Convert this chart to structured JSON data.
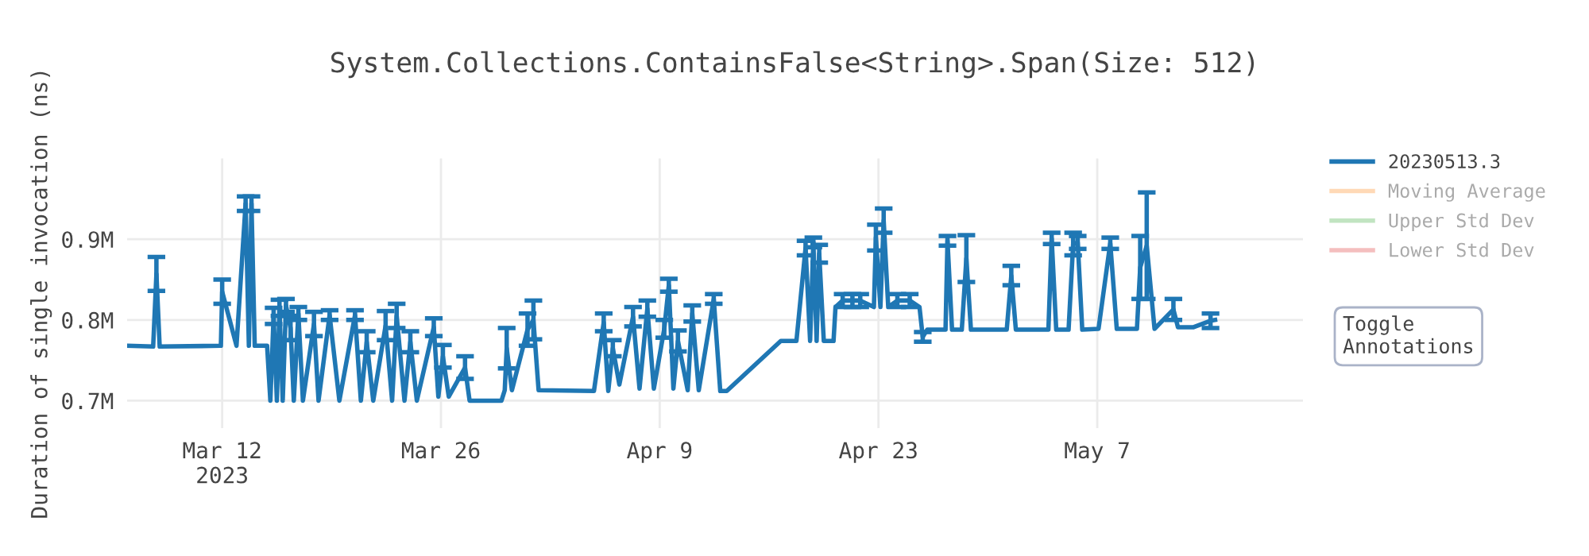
{
  "chart_data": {
    "type": "line",
    "title": "System.Collections.ContainsFalse<String>.Span(Size: 512)",
    "ylabel": "Duration of single invocation (ns)",
    "x": [
      "2023-03-05T22:00",
      "2023-03-07T14:00",
      "2023-03-07T19:00",
      "2023-03-08T00:00",
      "2023-03-11T22:00",
      "2023-03-12T00:00",
      "2023-03-12T22:00",
      "2023-03-13T12:00",
      "2023-03-13T17:00",
      "2023-03-13T21:00",
      "2023-03-14T02:00",
      "2023-03-14T21:00",
      "2023-03-15T02:00",
      "2023-03-15T07:00",
      "2023-03-15T12:00",
      "2023-03-15T16:00",
      "2023-03-15T21:00",
      "2023-03-16T02:00",
      "2023-03-16T09:00",
      "2023-03-16T14:00",
      "2023-03-16T21:00",
      "2023-03-17T04:00",
      "2023-03-17T21:00",
      "2023-03-18T04:00",
      "2023-03-18T21:00",
      "2023-03-19T12:00",
      "2023-03-20T12:00",
      "2023-03-20T21:00",
      "2023-03-21T06:00",
      "2023-03-21T16:00",
      "2023-03-22T11:00",
      "2023-03-22T21:00",
      "2023-03-23T04:00",
      "2023-03-23T16:00",
      "2023-03-24T01:00",
      "2023-03-24T11:00",
      "2023-03-25T13:00",
      "2023-03-25T20:00",
      "2023-03-26T03:00",
      "2023-03-26T12:00",
      "2023-03-27T13:00",
      "2023-03-27T20:00",
      "2023-03-29T21:00",
      "2023-03-30T02:00",
      "2023-03-30T05:00",
      "2023-03-30T13:00",
      "2023-03-31T13:00",
      "2023-03-31T22:00",
      "2023-04-01T06:00",
      "2023-04-04T19:00",
      "2023-04-05T10:00",
      "2023-04-05T17:00",
      "2023-04-06T00:00",
      "2023-04-06T10:00",
      "2023-04-07T07:00",
      "2023-04-07T17:00",
      "2023-04-08T05:00",
      "2023-04-08T15:00",
      "2023-04-09T07:00",
      "2023-04-09T14:00",
      "2023-04-09T21:00",
      "2023-04-10T04:00",
      "2023-04-10T19:00",
      "2023-04-11T02:00",
      "2023-04-11T12:00",
      "2023-04-12T11:00",
      "2023-04-12T21:00",
      "2023-04-13T07:00",
      "2023-04-16T18:00",
      "2023-04-17T18:00",
      "2023-04-18T08:00",
      "2023-04-18T15:00",
      "2023-04-18T20:00",
      "2023-04-19T01:00",
      "2023-04-19T05:00",
      "2023-04-19T12:00",
      "2023-04-20T03:00",
      "2023-04-20T06:00",
      "2023-04-20T17:00",
      "2023-04-21T08:00",
      "2023-04-21T20:00",
      "2023-04-22T17:00",
      "2023-04-22T20:00",
      "2023-04-23T03:00",
      "2023-04-23T08:00",
      "2023-04-23T15:00",
      "2023-04-24T05:00",
      "2023-04-25T00:00",
      "2023-04-25T15:00",
      "2023-04-25T20:00",
      "2023-04-26T03:00",
      "2023-04-27T07:00",
      "2023-04-27T10:00",
      "2023-04-27T17:00",
      "2023-04-28T08:00",
      "2023-04-28T15:00",
      "2023-04-28T22:00",
      "2023-05-01T05:00",
      "2023-05-01T12:00",
      "2023-05-01T19:00",
      "2023-05-03T21:00",
      "2023-05-04T02:00",
      "2023-05-04T09:00",
      "2023-05-05T04:00",
      "2023-05-05T11:00",
      "2023-05-05T18:00",
      "2023-05-06T01:00",
      "2023-05-07T02:00",
      "2023-05-07T20:00",
      "2023-05-08T06:00",
      "2023-05-09T13:00",
      "2023-05-09T18:00",
      "2023-05-10T04:00",
      "2023-05-10T16:00",
      "2023-05-11T21:00",
      "2023-05-12T04:00",
      "2023-05-13T04:00",
      "2023-05-14T06:00",
      "2023-05-14T13:00"
    ],
    "series": [
      {
        "name": "20230513.3",
        "color": "#1f77b4",
        "values": [
          768000,
          767000,
          857000,
          767000,
          768000,
          835000,
          768000,
          944000,
          768000,
          944000,
          768000,
          768000,
          700000,
          805000,
          700000,
          815000,
          700000,
          818000,
          790000,
          700000,
          808000,
          700000,
          795000,
          700000,
          806000,
          700000,
          806000,
          700000,
          773000,
          700000,
          793000,
          700000,
          805000,
          700000,
          773000,
          700000,
          791000,
          705000,
          755000,
          705000,
          741000,
          700000,
          700000,
          713000,
          765000,
          713000,
          788000,
          800000,
          713000,
          712000,
          797000,
          712000,
          765000,
          720000,
          804000,
          715000,
          814000,
          715000,
          789000,
          843000,
          715000,
          774000,
          713000,
          808000,
          713000,
          826000,
          712000,
          712000,
          774000,
          774000,
          889000,
          774000,
          896000,
          774000,
          882000,
          774000,
          774000,
          816000,
          824000,
          824000,
          824000,
          816000,
          902000,
          816000,
          923000,
          816000,
          824000,
          824000,
          816000,
          779000,
          788000,
          788000,
          898000,
          788000,
          788000,
          876000,
          788000,
          788000,
          855000,
          788000,
          788000,
          901000,
          788000,
          788000,
          894000,
          896000,
          788000,
          789000,
          895000,
          789000,
          789000,
          865000,
          892000,
          789000,
          813000,
          791000,
          791000,
          799000,
          800000
        ],
        "errors": [
          null,
          null,
          21000,
          null,
          null,
          15000,
          null,
          9000,
          null,
          9000,
          null,
          null,
          null,
          10000,
          null,
          10000,
          null,
          8000,
          15000,
          null,
          8000,
          null,
          15000,
          null,
          6000,
          null,
          6000,
          null,
          13000,
          null,
          18000,
          null,
          15000,
          null,
          13000,
          null,
          11000,
          null,
          14000,
          null,
          14000,
          null,
          null,
          null,
          25000,
          null,
          20000,
          24000,
          null,
          null,
          11000,
          null,
          10000,
          null,
          12000,
          null,
          10000,
          null,
          11000,
          8000,
          null,
          13000,
          null,
          10000,
          null,
          6000,
          null,
          null,
          null,
          null,
          9000,
          null,
          6000,
          null,
          11000,
          null,
          null,
          null,
          8000,
          8000,
          8000,
          null,
          16000,
          null,
          15000,
          null,
          8000,
          8000,
          null,
          6000,
          null,
          null,
          6000,
          null,
          null,
          29000,
          null,
          null,
          12000,
          null,
          null,
          7000,
          null,
          null,
          14000,
          8000,
          null,
          null,
          7000,
          null,
          null,
          39000,
          66000,
          null,
          13000,
          null,
          null,
          9000,
          null
        ]
      },
      {
        "name": "Moving Average",
        "color": "#ffbf86",
        "values": [
          null,
          null,
          null,
          null,
          null,
          null,
          null,
          null,
          null,
          null,
          null,
          null,
          null,
          null,
          null,
          null,
          null,
          null,
          null,
          null,
          null,
          null,
          null,
          null,
          null,
          null,
          null,
          null,
          null,
          null,
          null,
          null,
          null,
          null,
          null,
          null,
          null,
          null,
          null,
          null,
          null,
          null,
          null,
          null,
          null,
          null,
          null,
          null,
          null,
          null,
          null,
          null,
          null,
          null,
          null,
          null,
          null,
          null,
          null,
          null,
          null,
          null,
          null,
          null,
          null,
          null,
          null,
          null,
          null,
          null,
          null,
          null,
          null,
          null,
          null,
          null,
          null,
          null,
          null,
          null,
          null,
          null,
          null,
          null,
          null,
          null,
          null,
          null,
          null,
          null,
          null,
          null,
          null,
          null,
          null,
          null,
          null,
          null,
          null,
          null,
          null,
          null,
          null,
          null,
          null,
          null,
          null,
          null,
          null,
          null,
          null,
          null,
          null,
          null,
          null,
          null,
          null,
          null,
          null
        ]
      },
      {
        "name": "Upper Std Dev",
        "color": "#98d298",
        "values": [
          null,
          null,
          null,
          null,
          null,
          null,
          null,
          null,
          null,
          null,
          null,
          null,
          null,
          null,
          null,
          null,
          null,
          null,
          null,
          null,
          null,
          null,
          null,
          null,
          null,
          null,
          null,
          null,
          null,
          null,
          null,
          null,
          null,
          null,
          null,
          null,
          null,
          null,
          null,
          null,
          null,
          null,
          null,
          null,
          null,
          null,
          null,
          null,
          null,
          null,
          null,
          null,
          null,
          null,
          null,
          null,
          null,
          null,
          null,
          null,
          null,
          null,
          null,
          null,
          null,
          null,
          null,
          null,
          null,
          null,
          null,
          null,
          null,
          null,
          null,
          null,
          null,
          null,
          null,
          null,
          null,
          null,
          null,
          null,
          null,
          null,
          null,
          null,
          null,
          null,
          null,
          null,
          null,
          null,
          null,
          null,
          null,
          null,
          null,
          null,
          null,
          null,
          null,
          null,
          null,
          null,
          null,
          null,
          null,
          null,
          null,
          null,
          null,
          null,
          null,
          null,
          null,
          null,
          null
        ]
      },
      {
        "name": "Lower Std Dev",
        "color": "#ec9393",
        "values": [
          null,
          null,
          null,
          null,
          null,
          null,
          null,
          null,
          null,
          null,
          null,
          null,
          null,
          null,
          null,
          null,
          null,
          null,
          null,
          null,
          null,
          null,
          null,
          null,
          null,
          null,
          null,
          null,
          null,
          null,
          null,
          null,
          null,
          null,
          null,
          null,
          null,
          null,
          null,
          null,
          null,
          null,
          null,
          null,
          null,
          null,
          null,
          null,
          null,
          null,
          null,
          null,
          null,
          null,
          null,
          null,
          null,
          null,
          null,
          null,
          null,
          null,
          null,
          null,
          null,
          null,
          null,
          null,
          null,
          null,
          null,
          null,
          null,
          null,
          null,
          null,
          null,
          null,
          null,
          null,
          null,
          null,
          null,
          null,
          null,
          null,
          null,
          null,
          null,
          null,
          null,
          null,
          null,
          null,
          null,
          null,
          null,
          null,
          null,
          null,
          null,
          null,
          null,
          null,
          null,
          null,
          null,
          null,
          null,
          null,
          null,
          null,
          null,
          null,
          null,
          null,
          null,
          null,
          null
        ]
      }
    ],
    "xlim": [
      "2023-03-05T22:00",
      "2023-05-20T04:00"
    ],
    "xticks": [
      {
        "value": "2023-03-12",
        "label": "Mar 12\n2023"
      },
      {
        "value": "2023-03-26",
        "label": "Mar 26"
      },
      {
        "value": "2023-04-09",
        "label": "Apr 9"
      },
      {
        "value": "2023-04-23",
        "label": "Apr 23"
      },
      {
        "value": "2023-05-07",
        "label": "May 7"
      }
    ],
    "ylim": [
      666000,
      1000000
    ],
    "yticks": [
      {
        "value": 700000,
        "label": "0.7M"
      },
      {
        "value": 800000,
        "label": "0.8M"
      },
      {
        "value": 900000,
        "label": "0.9M"
      }
    ],
    "grid": true,
    "legend": "top right",
    "line_style": "solid",
    "marker": "none",
    "annotations": [
      "Toggle Annotations"
    ]
  }
}
